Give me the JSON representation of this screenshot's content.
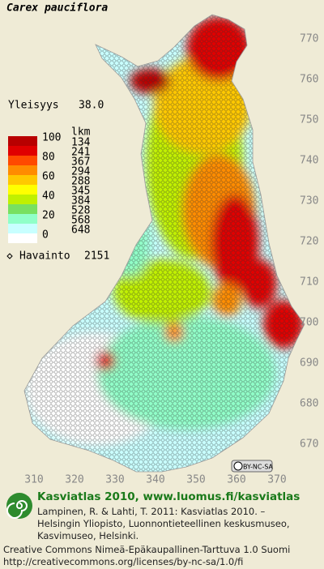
{
  "title": "Carex pauciflora",
  "frequency": {
    "label": "Yleisyys",
    "value": "38.0"
  },
  "legend": {
    "percent_ticks": [
      100,
      80,
      60,
      40,
      20,
      0
    ],
    "count_header": "lkm",
    "counts": [
      134,
      241,
      367,
      294,
      288,
      345,
      384,
      528,
      568,
      648
    ],
    "colors": [
      "#b80000",
      "#e00000",
      "#ff4a00",
      "#ff8c00",
      "#ffc800",
      "#ffff00",
      "#c0f000",
      "#78e060",
      "#90ffc8",
      "#c8ffff"
    ]
  },
  "observations": {
    "label": "Havainto",
    "count": 2151
  },
  "grid": {
    "x_ticks": [
      310,
      320,
      330,
      340,
      350,
      360,
      370
    ],
    "y_ticks": [
      770,
      760,
      750,
      740,
      730,
      720,
      710,
      700,
      690,
      680,
      670
    ]
  },
  "license_badge": "BY-NC-SA",
  "footer": {
    "heading": "Kasviatlas 2010, www.luomus.fi/kasviatlas",
    "citation": [
      "Lampinen, R. & Lahti, T. 2011: Kasviatlas 2010. –",
      "Helsingin Yliopisto, Luonnontieteellinen keskusmuseo,",
      "Kasvimuseo, Helsinki."
    ],
    "license": [
      "Creative Commons Nimeä-Epäkaupallinen-Tarttuva 1.0 Suomi",
      "http://creativecommons.org/licenses/by-nc-sa/1.0/fi"
    ]
  }
}
